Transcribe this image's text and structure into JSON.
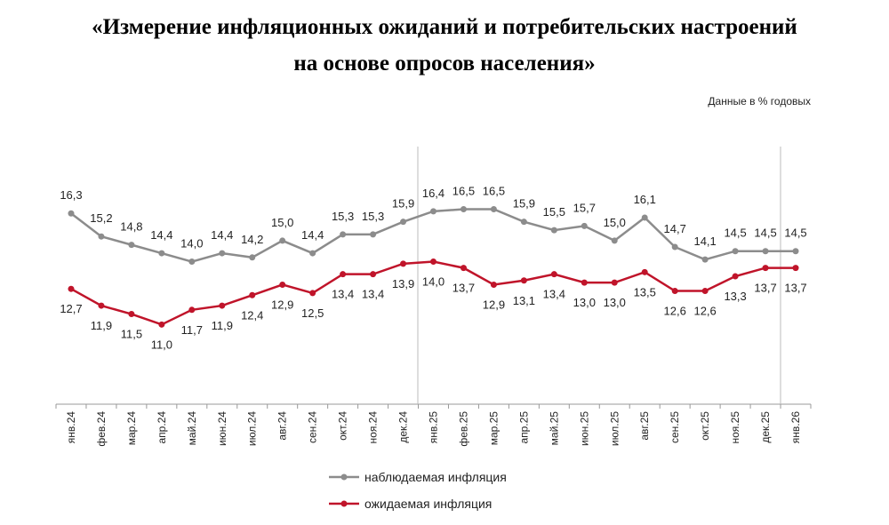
{
  "chart_data": {
    "type": "line",
    "title": [
      "«Измерение инфляционных ожиданий и потребительских настроений",
      "на основе опросов населения»"
    ],
    "subtitle": "Данные в % годовых",
    "categories": [
      "янв.24",
      "фев.24",
      "мар.24",
      "апр.24",
      "май.24",
      "июн.24",
      "июл.24",
      "авг.24",
      "сен.24",
      "окт.24",
      "ноя.24",
      "дек.24",
      "янв.25",
      "фев.25",
      "мар.25",
      "апр.25",
      "май.25",
      "июн.25",
      "июл.25",
      "авг.25",
      "сен.25",
      "окт.25",
      "ноя.25",
      "дек.25",
      "янв.26"
    ],
    "series": [
      {
        "name": "наблюдаемая инфляция",
        "color": "#8c8c8c",
        "values": [
          16.3,
          15.2,
          14.8,
          14.4,
          14.0,
          14.4,
          14.2,
          15.0,
          14.4,
          15.3,
          15.3,
          15.9,
          16.4,
          16.5,
          16.5,
          15.9,
          15.5,
          15.7,
          15.0,
          16.1,
          14.7,
          14.1,
          14.5,
          14.5,
          14.5
        ],
        "value_labels": [
          "16,3",
          "15,2",
          "14,8",
          "14,4",
          "14,0",
          "14,4",
          "14,2",
          "15,0",
          "14,4",
          "15,3",
          "15,3",
          "15,9",
          "16,4",
          "16,5",
          "16,5",
          "15,9",
          "15,5",
          "15,7",
          "15,0",
          "16,1",
          "14,7",
          "14,1",
          "14,5",
          "14,5",
          "14,5"
        ]
      },
      {
        "name": "ожидаемая инфляция",
        "color": "#c0142a",
        "values": [
          12.7,
          11.9,
          11.5,
          11.0,
          11.7,
          11.9,
          12.4,
          12.9,
          12.5,
          13.4,
          13.4,
          13.9,
          14.0,
          13.7,
          12.9,
          13.1,
          13.4,
          13.0,
          13.0,
          13.5,
          12.6,
          12.6,
          13.3,
          13.7,
          13.7
        ],
        "value_labels": [
          "12,7",
          "11,9",
          "11,5",
          "11,0",
          "11,7",
          "11,9",
          "12,4",
          "12,9",
          "12,5",
          "13,4",
          "13,4",
          "13,9",
          "14,0",
          "13,7",
          "12,9",
          "13,1",
          "13,4",
          "13,0",
          "13,0",
          "13,5",
          "12,6",
          "12,6",
          "13,3",
          "13,7",
          "13,7"
        ]
      }
    ],
    "ylim": [
      7.2,
      19.7
    ]
  }
}
